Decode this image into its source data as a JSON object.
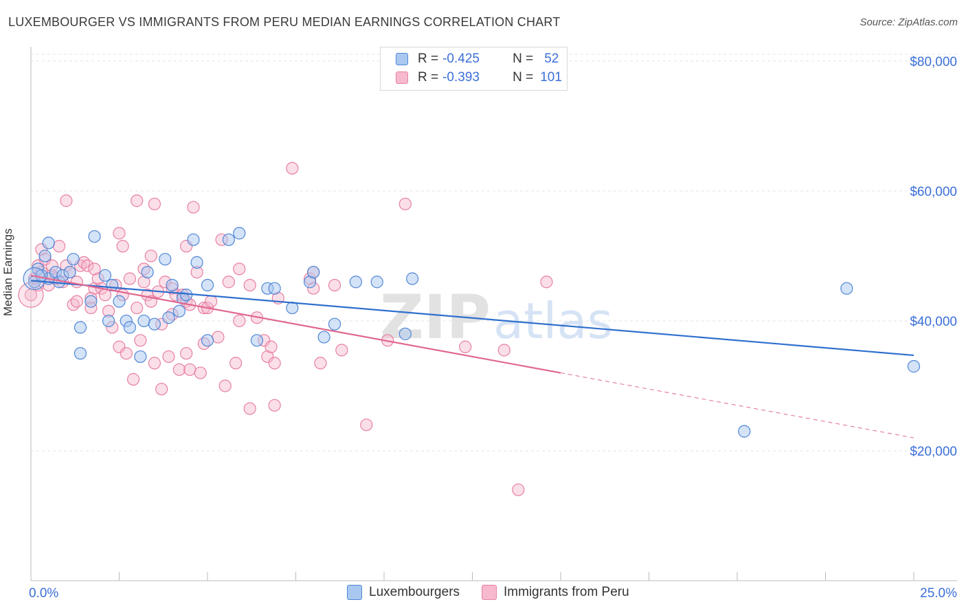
{
  "title": "LUXEMBOURGER VS IMMIGRANTS FROM PERU MEDIAN EARNINGS CORRELATION CHART",
  "source": "Source: ZipAtlas.com",
  "watermark": {
    "zip": "ZIP",
    "atlas": "atlas"
  },
  "legend": {
    "rows": [
      {
        "r_label": "R =",
        "r_value": "-0.425",
        "n_label": "N =",
        "n_value": "52"
      },
      {
        "r_label": "R =",
        "r_value": "-0.393",
        "n_label": "N =",
        "n_value": "101"
      }
    ]
  },
  "bottom_legend": {
    "series1": "Luxembourgers",
    "series2": "Immigrants from Peru"
  },
  "colors": {
    "blue_fill": "#a9c7ef",
    "blue_stroke": "#4f86d6",
    "blue_line": "#2f6fce",
    "pink_fill": "#f6b9cd",
    "pink_stroke": "#e77fa2",
    "pink_line": "#e0678f",
    "tick_label": "#3a6fd8",
    "grid": "#e3e3e3"
  },
  "chart_data": {
    "type": "scatter",
    "title": "LUXEMBOURGER VS IMMIGRANTS FROM PERU MEDIAN EARNINGS CORRELATION CHART",
    "xlabel": "",
    "ylabel": "Median Earnings",
    "xlim": [
      0,
      25
    ],
    "ylim": [
      0,
      82000
    ],
    "x_tick_labels": [
      "0.0%",
      "25.0%"
    ],
    "y_ticks": [
      20000,
      40000,
      60000,
      80000
    ],
    "y_tick_labels": [
      "$20,000",
      "$40,000",
      "$60,000",
      "$80,000"
    ],
    "series": [
      {
        "name": "Luxembourgers",
        "color": "blue",
        "r": -0.425,
        "n": 52,
        "trend": {
          "x0": 0,
          "y0": 46200,
          "x1": 25,
          "y1": 34700
        },
        "points": [
          [
            0.2,
            48000
          ],
          [
            0.4,
            50000
          ],
          [
            0.5,
            52000
          ],
          [
            0.5,
            46500
          ],
          [
            0.7,
            47500
          ],
          [
            0.8,
            46000
          ],
          [
            0.9,
            47000
          ],
          [
            1.1,
            47500
          ],
          [
            1.2,
            49500
          ],
          [
            1.4,
            39000
          ],
          [
            1.4,
            35000
          ],
          [
            1.7,
            43000
          ],
          [
            1.8,
            53000
          ],
          [
            2.1,
            47000
          ],
          [
            2.2,
            40000
          ],
          [
            2.3,
            45500
          ],
          [
            2.5,
            43000
          ],
          [
            2.7,
            40000
          ],
          [
            2.8,
            39000
          ],
          [
            3.1,
            34500
          ],
          [
            3.2,
            40000
          ],
          [
            3.3,
            47500
          ],
          [
            3.5,
            39500
          ],
          [
            3.8,
            49500
          ],
          [
            3.9,
            40500
          ],
          [
            4.0,
            45500
          ],
          [
            4.2,
            41500
          ],
          [
            4.3,
            43500
          ],
          [
            4.4,
            44000
          ],
          [
            4.6,
            52500
          ],
          [
            4.7,
            49000
          ],
          [
            5.0,
            37000
          ],
          [
            5.0,
            45500
          ],
          [
            5.6,
            52500
          ],
          [
            5.9,
            53500
          ],
          [
            6.4,
            37000
          ],
          [
            6.7,
            45000
          ],
          [
            6.9,
            45000
          ],
          [
            7.4,
            42000
          ],
          [
            7.9,
            46000
          ],
          [
            8.0,
            47500
          ],
          [
            8.3,
            37500
          ],
          [
            8.6,
            39500
          ],
          [
            9.2,
            46000
          ],
          [
            9.8,
            46000
          ],
          [
            10.6,
            38000
          ],
          [
            10.8,
            46500
          ],
          [
            20.2,
            23000
          ],
          [
            23.1,
            45000
          ],
          [
            25.0,
            33000
          ],
          [
            0.1,
            46000
          ],
          [
            0.3,
            47000
          ]
        ]
      },
      {
        "name": "Immigrants from Peru",
        "color": "pink",
        "r": -0.393,
        "n": 101,
        "trend": {
          "x0": 0,
          "y0": 47000,
          "x1": 15,
          "y1": 32000
        },
        "trend_dashed": {
          "x0": 15,
          "y0": 32000,
          "x1": 25,
          "y1": 22000
        },
        "points": [
          [
            0.0,
            44000
          ],
          [
            0.1,
            46500
          ],
          [
            0.2,
            48500
          ],
          [
            0.3,
            51000
          ],
          [
            0.3,
            47500
          ],
          [
            0.4,
            49500
          ],
          [
            0.5,
            45500
          ],
          [
            0.6,
            47000
          ],
          [
            0.6,
            48500
          ],
          [
            0.7,
            46500
          ],
          [
            0.8,
            51500
          ],
          [
            0.9,
            46000
          ],
          [
            1.0,
            48500
          ],
          [
            1.0,
            58500
          ],
          [
            1.1,
            47500
          ],
          [
            1.2,
            42500
          ],
          [
            1.3,
            46000
          ],
          [
            1.3,
            43000
          ],
          [
            1.4,
            48500
          ],
          [
            1.5,
            49000
          ],
          [
            1.6,
            48500
          ],
          [
            1.7,
            43500
          ],
          [
            1.7,
            42000
          ],
          [
            1.8,
            45000
          ],
          [
            1.9,
            46500
          ],
          [
            2.0,
            45000
          ],
          [
            2.1,
            44000
          ],
          [
            2.2,
            41500
          ],
          [
            2.3,
            39000
          ],
          [
            2.4,
            45500
          ],
          [
            2.5,
            36000
          ],
          [
            2.5,
            53500
          ],
          [
            2.6,
            51500
          ],
          [
            2.6,
            44000
          ],
          [
            2.7,
            35000
          ],
          [
            2.8,
            46500
          ],
          [
            2.9,
            31000
          ],
          [
            3.0,
            42000
          ],
          [
            3.0,
            58500
          ],
          [
            3.1,
            37000
          ],
          [
            3.2,
            48000
          ],
          [
            3.2,
            46000
          ],
          [
            3.3,
            44000
          ],
          [
            3.4,
            43000
          ],
          [
            3.4,
            50000
          ],
          [
            3.5,
            58000
          ],
          [
            3.5,
            33500
          ],
          [
            3.6,
            44500
          ],
          [
            3.7,
            39500
          ],
          [
            3.7,
            29500
          ],
          [
            3.8,
            46000
          ],
          [
            3.9,
            34500
          ],
          [
            4.0,
            45000
          ],
          [
            4.0,
            41000
          ],
          [
            4.1,
            44000
          ],
          [
            4.2,
            32500
          ],
          [
            4.3,
            44000
          ],
          [
            4.4,
            43000
          ],
          [
            4.4,
            35000
          ],
          [
            4.4,
            51500
          ],
          [
            4.5,
            32500
          ],
          [
            4.5,
            42500
          ],
          [
            4.6,
            57500
          ],
          [
            4.7,
            47500
          ],
          [
            4.8,
            32000
          ],
          [
            4.9,
            42000
          ],
          [
            4.9,
            36500
          ],
          [
            5.0,
            42000
          ],
          [
            5.1,
            43000
          ],
          [
            5.3,
            37500
          ],
          [
            5.4,
            52500
          ],
          [
            5.5,
            30000
          ],
          [
            5.6,
            46000
          ],
          [
            5.8,
            33500
          ],
          [
            5.9,
            40000
          ],
          [
            5.9,
            48000
          ],
          [
            6.2,
            26500
          ],
          [
            6.2,
            45500
          ],
          [
            6.4,
            40500
          ],
          [
            6.6,
            37000
          ],
          [
            6.7,
            34500
          ],
          [
            6.8,
            36000
          ],
          [
            6.9,
            27000
          ],
          [
            6.9,
            33500
          ],
          [
            7.0,
            43500
          ],
          [
            7.4,
            63500
          ],
          [
            7.9,
            46500
          ],
          [
            8.0,
            45000
          ],
          [
            8.0,
            47500
          ],
          [
            8.2,
            33500
          ],
          [
            8.6,
            45500
          ],
          [
            8.8,
            35500
          ],
          [
            9.5,
            24000
          ],
          [
            10.1,
            37000
          ],
          [
            10.6,
            58000
          ],
          [
            12.3,
            36000
          ],
          [
            13.4,
            35500
          ],
          [
            13.8,
            14000
          ],
          [
            14.6,
            46000
          ],
          [
            0.2,
            45500
          ],
          [
            1.8,
            48000
          ]
        ]
      }
    ]
  }
}
